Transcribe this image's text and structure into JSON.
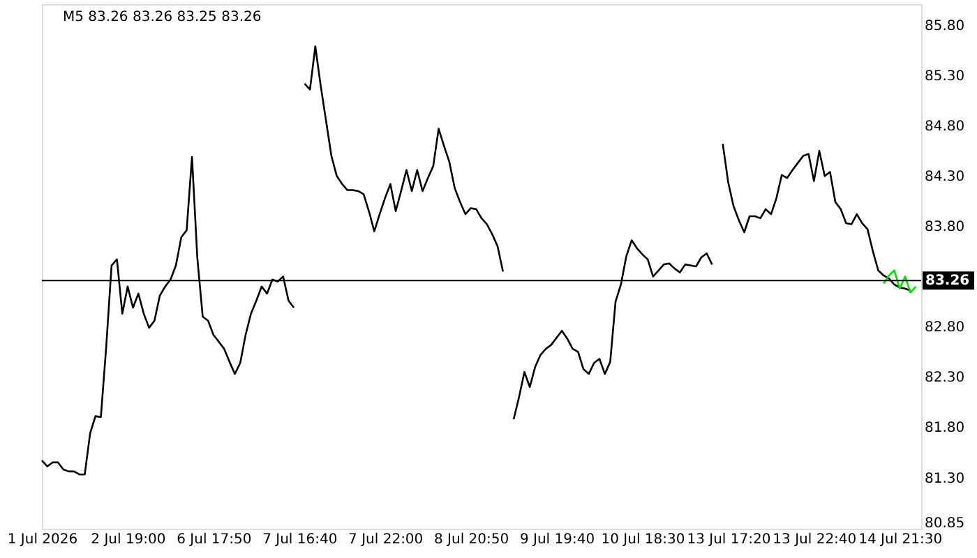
{
  "chart_data": {
    "type": "line",
    "title": "M5  83.26 83.26 83.25 83.26",
    "categories": [
      "1 Jul 2026",
      null,
      null,
      null,
      null,
      null,
      null,
      null,
      null,
      null,
      null,
      null,
      null,
      null,
      null,
      null,
      "2 Jul 19:00",
      null,
      null,
      null,
      null,
      null,
      null,
      null,
      null,
      null,
      null,
      null,
      null,
      null,
      null,
      null,
      "6 Jul 17:50",
      null,
      null,
      null,
      null,
      null,
      null,
      null,
      null,
      null,
      null,
      null,
      null,
      null,
      null,
      null,
      "7 Jul 16:40",
      null,
      null,
      null,
      null,
      null,
      null,
      null,
      null,
      null,
      null,
      null,
      null,
      null,
      null,
      null,
      "7 Jul 22:00",
      null,
      null,
      null,
      null,
      null,
      null,
      null,
      null,
      null,
      null,
      null,
      null,
      null,
      null,
      null,
      "8 Jul 20:50",
      null,
      null,
      null,
      null,
      null,
      null,
      null,
      null,
      null,
      null,
      null,
      null,
      null,
      null,
      null,
      "9 Jul 19:40",
      null,
      null,
      null,
      null,
      null,
      null,
      null,
      null,
      null,
      null,
      null,
      null,
      null,
      null,
      null,
      "10 Jul 18:30",
      null,
      null,
      null,
      null,
      null,
      null,
      null,
      null,
      null,
      null,
      null,
      null,
      null,
      null,
      null,
      "13 Jul 17:20",
      null,
      null,
      null,
      null,
      null,
      null,
      null,
      null,
      null,
      null,
      null,
      null,
      null,
      null,
      null,
      "13 Jul 22:40",
      null,
      null,
      null,
      null,
      null,
      null,
      null,
      null,
      null,
      null,
      null,
      null,
      null,
      null,
      null,
      "14 Jul 21:30",
      null,
      null,
      null,
      null
    ],
    "ylim": [
      80.79,
      86.01
    ],
    "yticks": [
      {
        "value": 80.85,
        "label": "80.85"
      },
      {
        "value": 81.3,
        "label": "81.30"
      },
      {
        "value": 81.8,
        "label": "81.80"
      },
      {
        "value": 82.3,
        "label": "82.30"
      },
      {
        "value": 82.8,
        "label": "82.80"
      },
      {
        "value": 83.8,
        "label": "83.80"
      },
      {
        "value": 84.3,
        "label": "84.30"
      },
      {
        "value": 84.8,
        "label": "84.80"
      },
      {
        "value": 85.3,
        "label": "85.30"
      },
      {
        "value": 85.8,
        "label": "85.80"
      }
    ],
    "grid": false,
    "ref_lines": [
      {
        "axis": "y",
        "value": 83.26,
        "label": "83.26",
        "color": "#000000"
      }
    ],
    "series": [
      {
        "color": "#000000",
        "values": [
          81.47,
          81.41,
          81.45,
          81.45,
          81.38,
          81.36,
          81.36,
          81.33,
          81.33,
          81.74,
          81.91,
          81.9,
          82.6,
          83.41,
          83.47,
          82.93,
          83.2,
          82.99,
          83.13,
          82.93,
          82.79,
          82.86,
          83.11,
          83.2,
          83.27,
          83.41,
          83.69,
          83.76,
          84.49,
          83.48,
          82.9,
          82.86,
          82.72,
          82.65,
          82.58,
          82.45,
          82.33,
          82.44,
          82.72,
          82.93,
          83.06,
          83.2,
          83.13,
          83.27,
          83.25,
          83.3,
          83.06,
          82.99,
          null,
          85.22,
          85.16,
          85.59,
          85.2,
          84.85,
          84.5,
          84.3,
          84.22,
          84.16,
          84.16,
          84.15,
          84.12,
          83.95,
          83.75,
          83.92,
          84.08,
          84.22,
          83.95,
          84.15,
          84.36,
          84.15,
          84.36,
          84.15,
          84.28,
          84.4,
          84.77,
          84.6,
          84.44,
          84.18,
          84.04,
          83.92,
          83.98,
          83.97,
          83.88,
          83.82,
          83.72,
          83.6,
          83.35,
          null,
          81.88,
          82.1,
          82.35,
          82.2,
          82.4,
          82.52,
          82.58,
          82.62,
          82.69,
          82.76,
          82.68,
          82.58,
          82.55,
          82.38,
          82.33,
          82.44,
          82.48,
          82.33,
          82.45,
          83.05,
          83.22,
          83.5,
          83.66,
          83.58,
          83.52,
          83.47,
          83.3,
          83.36,
          83.42,
          83.43,
          83.38,
          83.34,
          83.42,
          83.41,
          83.4,
          83.49,
          83.53,
          83.42,
          null,
          84.62,
          84.24,
          84.0,
          83.86,
          83.74,
          83.9,
          83.9,
          83.88,
          83.97,
          83.92,
          84.08,
          84.31,
          84.28,
          84.36,
          84.43,
          84.5,
          84.52,
          84.25,
          84.55,
          84.3,
          84.34,
          84.04,
          83.97,
          83.83,
          83.82,
          83.92,
          83.83,
          83.77,
          83.55,
          83.36,
          83.31,
          83.28,
          83.22,
          83.19,
          83.18,
          83.16,
          null,
          null
        ]
      },
      {
        "color": "#00e000",
        "values": [
          null,
          null,
          null,
          null,
          null,
          null,
          null,
          null,
          null,
          null,
          null,
          null,
          null,
          null,
          null,
          null,
          null,
          null,
          null,
          null,
          null,
          null,
          null,
          null,
          null,
          null,
          null,
          null,
          null,
          null,
          null,
          null,
          null,
          null,
          null,
          null,
          null,
          null,
          null,
          null,
          null,
          null,
          null,
          null,
          null,
          null,
          null,
          null,
          null,
          null,
          null,
          null,
          null,
          null,
          null,
          null,
          null,
          null,
          null,
          null,
          null,
          null,
          null,
          null,
          null,
          null,
          null,
          null,
          null,
          null,
          null,
          null,
          null,
          null,
          null,
          null,
          null,
          null,
          null,
          null,
          null,
          null,
          null,
          null,
          null,
          null,
          null,
          null,
          null,
          null,
          null,
          null,
          null,
          null,
          null,
          null,
          null,
          null,
          null,
          null,
          null,
          null,
          null,
          null,
          null,
          null,
          null,
          null,
          null,
          null,
          null,
          null,
          null,
          null,
          null,
          null,
          null,
          null,
          null,
          null,
          null,
          null,
          null,
          null,
          null,
          null,
          null,
          null,
          null,
          null,
          null,
          null,
          null,
          null,
          null,
          null,
          null,
          null,
          null,
          null,
          null,
          null,
          null,
          null,
          null,
          null,
          null,
          null,
          null,
          null,
          null,
          null,
          null,
          null,
          null,
          null,
          null,
          83.23,
          83.31,
          83.36,
          83.18,
          83.3,
          83.14,
          83.2,
          null
        ]
      }
    ]
  }
}
